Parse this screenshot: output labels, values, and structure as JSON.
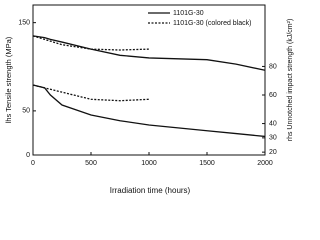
{
  "chart_data": {
    "type": "line",
    "xlabel": "Irradiation time (hours)",
    "ylabel": "lhs Tensile strength (MPa)",
    "y2label": "rhs Unnotched impact strength (kJ/cm²)",
    "x": [
      0,
      100,
      150,
      250,
      500,
      750,
      1000,
      1250,
      1500,
      1750,
      2000
    ],
    "xlim": [
      0,
      2000
    ],
    "xticks": [
      0,
      500,
      1000,
      1500,
      2000
    ],
    "ylim": [
      0,
      170
    ],
    "yticks": [
      0,
      50,
      150
    ],
    "y2lim": [
      18,
      123
    ],
    "y2ticks": [
      20,
      30,
      40,
      60,
      80
    ],
    "series": [
      {
        "name": "1101G-30",
        "color": "#111111",
        "dash": "none",
        "values": [
          135,
          133,
          131,
          128,
          120,
          113,
          110,
          109,
          108,
          103,
          96
        ],
        "values2": [
          67,
          65,
          60,
          53,
          46,
          42,
          39,
          37,
          35,
          33,
          31
        ]
      },
      {
        "name": "1101G-30 (colored black)",
        "color": "#111111",
        "dash": "2,1.5",
        "values": [
          135,
          131,
          129,
          125,
          120,
          119,
          120,
          null,
          null,
          null,
          null
        ],
        "values2": [
          67,
          65,
          64,
          62,
          57,
          56,
          57,
          null,
          null,
          null,
          null
        ]
      }
    ]
  }
}
